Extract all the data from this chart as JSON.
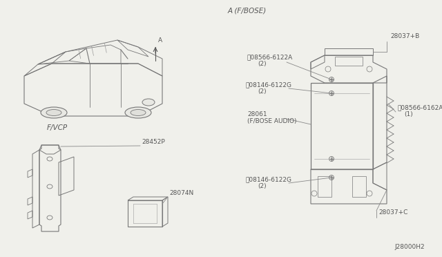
{
  "bg_color": "#f0f0eb",
  "title_diagram": "J28000H2",
  "section_A_label": "A (F/BOSE)",
  "section_FVCP_label": "F/VCP",
  "font_color": "#555555",
  "line_color": "#888888",
  "draw_color": "#777777",
  "font_size": 6.5,
  "label_28037B": "28037+B",
  "label_28037C": "28037+C",
  "label_28061": "28061",
  "label_28061b": "(F/BOSE AUDIO)",
  "label_08566_6122A": "Ⓢ08566-6122A",
  "label_08146_6122G": "Ⓢ08146-6122G",
  "label_08566_6162A": "Ⓢ08566-6162A",
  "label_qty2": "(2)",
  "label_qty1": "(1)",
  "label_28452P": "28452P",
  "label_28074N": "28074N",
  "label_A": "A"
}
